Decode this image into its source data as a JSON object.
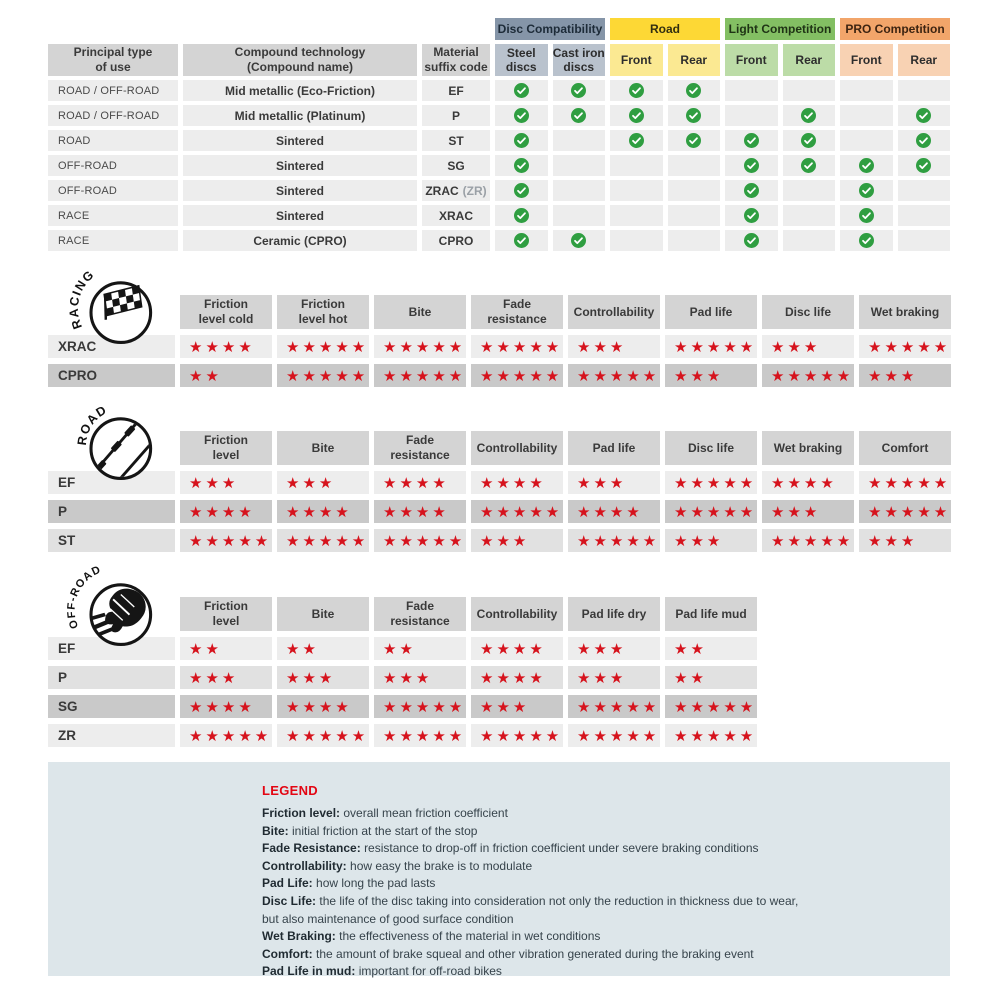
{
  "colors": {
    "header_gray": "#d4d4d4",
    "cell_light": "#ededed",
    "cell_mid": "#e1e1e1",
    "cell_dark": "#c9c9c9",
    "star_red": "#d6131d",
    "check_green": "#2f9e41",
    "legend_bg": "#dde6ea",
    "legend_red": "#e30613"
  },
  "chart_data": [
    {
      "type": "table",
      "title": "Compound compatibility matrix",
      "columns": [
        "Principal type\nof use",
        "Compound technology\n(Compound name)",
        "Material\nsuffix code"
      ],
      "groups": [
        {
          "label": "Disc Compatibility",
          "bg": "#8595a8",
          "sub_bg": "#b9c2cd",
          "text": "#1d2b38",
          "subs": [
            "Steel\ndiscs",
            "Cast iron\ndiscs"
          ]
        },
        {
          "label": "Road",
          "bg": "#fdd835",
          "sub_bg": "#fbe992",
          "text": "#332f10",
          "subs": [
            "Front",
            "Rear"
          ]
        },
        {
          "label": "Light Competition",
          "bg": "#83bf63",
          "sub_bg": "#bcdca7",
          "text": "#1f3315",
          "subs": [
            "Front",
            "Rear"
          ]
        },
        {
          "label": "PRO Competition",
          "bg": "#f2a56a",
          "sub_bg": "#f8d2b3",
          "text": "#3d2411",
          "subs": [
            "Front",
            "Rear"
          ]
        }
      ],
      "check_columns": [
        "steel-discs",
        "cast-iron-discs",
        "road-front",
        "road-rear",
        "light-competition-front",
        "light-competition-rear",
        "pro-competition-front",
        "pro-competition-rear"
      ],
      "rows": [
        {
          "use": "ROAD / OFF-ROAD",
          "compound": "Mid metallic (Eco-Friction)",
          "code": "EF",
          "alt": "",
          "checks": [
            1,
            1,
            1,
            1,
            0,
            0,
            0,
            0
          ]
        },
        {
          "use": "ROAD / OFF-ROAD",
          "compound": "Mid metallic (Platinum)",
          "code": "P",
          "alt": "",
          "checks": [
            1,
            1,
            1,
            1,
            0,
            1,
            0,
            1
          ]
        },
        {
          "use": "ROAD",
          "compound": "Sintered",
          "code": "ST",
          "alt": "",
          "checks": [
            1,
            0,
            1,
            1,
            1,
            1,
            0,
            1
          ]
        },
        {
          "use": "OFF-ROAD",
          "compound": "Sintered",
          "code": "SG",
          "alt": "",
          "checks": [
            1,
            0,
            0,
            0,
            1,
            1,
            1,
            1
          ]
        },
        {
          "use": "OFF-ROAD",
          "compound": "Sintered",
          "code": "ZRAC",
          "alt": "(ZR)",
          "checks": [
            1,
            0,
            0,
            0,
            1,
            0,
            1,
            0
          ]
        },
        {
          "use": "RACE",
          "compound": "Sintered",
          "code": "XRAC",
          "alt": "",
          "checks": [
            1,
            0,
            0,
            0,
            1,
            0,
            1,
            0
          ]
        },
        {
          "use": "RACE",
          "compound": "Ceramic (CPRO)",
          "code": "CPRO",
          "alt": "",
          "checks": [
            1,
            1,
            0,
            0,
            1,
            0,
            1,
            0
          ]
        }
      ]
    },
    {
      "type": "table",
      "title": "Racing ratings",
      "icon_label": "RACING",
      "columns": [
        "Friction\nlevel cold",
        "Friction\nlevel hot",
        "Bite",
        "Fade\nresistance",
        "Controllability",
        "Pad life",
        "Disc life",
        "Wet braking"
      ],
      "rows": [
        {
          "label": "XRAC",
          "shade": "light",
          "values": [
            4,
            5,
            5,
            5,
            3,
            5,
            3,
            5
          ]
        },
        {
          "label": "CPRO",
          "shade": "dark",
          "values": [
            2,
            5,
            5,
            5,
            5,
            3,
            5,
            3
          ]
        }
      ],
      "rating_scale": "1-5 stars"
    },
    {
      "type": "table",
      "title": "Road ratings",
      "icon_label": "ROAD",
      "columns": [
        "Friction\nlevel",
        "Bite",
        "Fade\nresistance",
        "Controllability",
        "Pad life",
        "Disc life",
        "Wet braking",
        "Comfort"
      ],
      "rows": [
        {
          "label": "EF",
          "shade": "light",
          "values": [
            3,
            3,
            4,
            4,
            3,
            5,
            4,
            5
          ]
        },
        {
          "label": "P",
          "shade": "dark",
          "values": [
            4,
            4,
            4,
            5,
            4,
            5,
            3,
            5
          ]
        },
        {
          "label": "ST",
          "shade": "mid",
          "values": [
            5,
            5,
            5,
            3,
            5,
            3,
            5,
            3
          ]
        }
      ],
      "rating_scale": "1-5 stars"
    },
    {
      "type": "table",
      "title": "Off-road ratings",
      "icon_label": "OFF-ROAD",
      "columns": [
        "Friction\nlevel",
        "Bite",
        "Fade\nresistance",
        "Controllability",
        "Pad life dry",
        "Pad life mud"
      ],
      "rows": [
        {
          "label": "EF",
          "shade": "light",
          "values": [
            2,
            2,
            2,
            4,
            3,
            2
          ]
        },
        {
          "label": "P",
          "shade": "mid",
          "values": [
            3,
            3,
            3,
            4,
            3,
            2
          ]
        },
        {
          "label": "SG",
          "shade": "dark",
          "values": [
            4,
            4,
            5,
            3,
            5,
            5
          ]
        },
        {
          "label": "ZR",
          "shade": "light",
          "values": [
            5,
            5,
            5,
            5,
            5,
            5
          ]
        }
      ],
      "rating_scale": "1-5 stars"
    }
  ],
  "legend": {
    "title": "LEGEND",
    "items": [
      {
        "term": "Friction level:",
        "desc": "overall mean friction coefficient"
      },
      {
        "term": "Bite:",
        "desc": "initial friction at the start of the stop"
      },
      {
        "term": "Fade Resistance:",
        "desc": "resistance to drop-off in friction coefficient under severe braking conditions"
      },
      {
        "term": "Controllability:",
        "desc": "how easy the brake is to modulate"
      },
      {
        "term": "Pad Life:",
        "desc": "how long the pad lasts"
      },
      {
        "term": "Disc Life:",
        "desc": "the life of the disc taking into consideration not only the reduction in thickness due to wear,"
      },
      {
        "term": "",
        "desc": "but also maintenance of good surface condition"
      },
      {
        "term": "Wet Braking:",
        "desc": "the effectiveness of the material in wet conditions"
      },
      {
        "term": "Comfort:",
        "desc": "the amount of brake squeal and other vibration generated during the braking event"
      },
      {
        "term": "Pad Life in mud:",
        "desc": "important for off-road bikes"
      }
    ]
  }
}
